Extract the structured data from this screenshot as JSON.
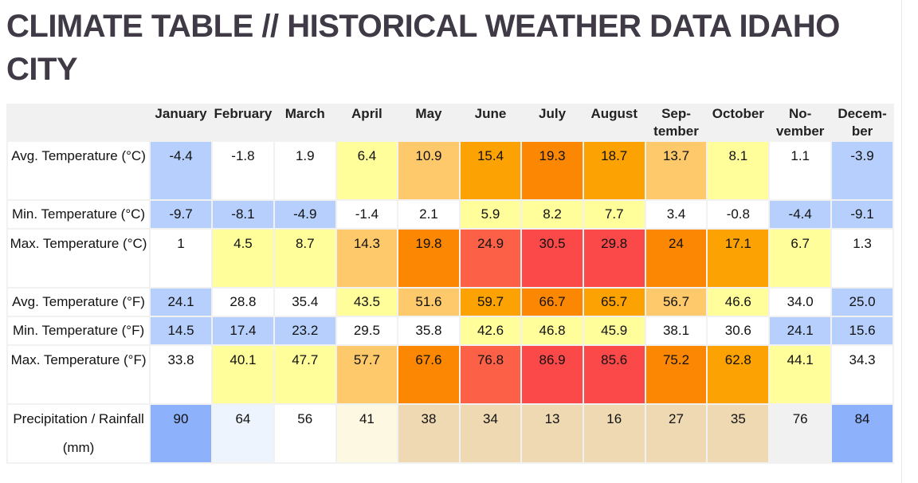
{
  "title": "CLIMATE TABLE // HISTORICAL WEATHER DATA IDAHO CITY",
  "months": [
    "January",
    "February",
    "March",
    "April",
    "May",
    "June",
    "July",
    "August",
    "Sep-\ntember",
    "October",
    "No-\nvember",
    "Decem-\nber"
  ],
  "rows": [
    {
      "label": "Avg. Temperature (°C)",
      "values": [
        "-4.4",
        "-1.8",
        "1.9",
        "6.4",
        "10.9",
        "15.4",
        "19.3",
        "18.7",
        "13.7",
        "8.1",
        "1.1",
        "-3.9"
      ],
      "colors": [
        "#b6cffc",
        "#ffffff",
        "#ffffff",
        "#fffe9a",
        "#fdc96b",
        "#fca202",
        "#fc8702",
        "#fca202",
        "#fdc96b",
        "#fffe9a",
        "#ffffff",
        "#b6cffc"
      ]
    },
    {
      "label": "Min. Temperature (°C)",
      "values": [
        "-9.7",
        "-8.1",
        "-4.9",
        "-1.4",
        "2.1",
        "5.9",
        "8.2",
        "7.7",
        "3.4",
        "-0.8",
        "-4.4",
        "-9.1"
      ],
      "colors": [
        "#b6cffc",
        "#b6cffc",
        "#b6cffc",
        "#ffffff",
        "#ffffff",
        "#fffe9a",
        "#fffe9a",
        "#fffe9a",
        "#ffffff",
        "#ffffff",
        "#b6cffc",
        "#b6cffc"
      ]
    },
    {
      "label": "Max. Temperature (°C)",
      "values": [
        "1",
        "4.5",
        "8.7",
        "14.3",
        "19.8",
        "24.9",
        "30.5",
        "29.8",
        "24",
        "17.1",
        "6.7",
        "1.3"
      ],
      "colors": [
        "#ffffff",
        "#fffe9a",
        "#fffe9a",
        "#fdc96b",
        "#fc8702",
        "#fc6148",
        "#fb4848",
        "#fb4848",
        "#fc8702",
        "#fca202",
        "#fffe9a",
        "#ffffff"
      ]
    },
    {
      "label": "Avg. Temperature (°F)",
      "values": [
        "24.1",
        "28.8",
        "35.4",
        "43.5",
        "51.6",
        "59.7",
        "66.7",
        "65.7",
        "56.7",
        "46.6",
        "34.0",
        "25.0"
      ],
      "colors": [
        "#b6cffc",
        "#ffffff",
        "#ffffff",
        "#fffe9a",
        "#fdc96b",
        "#fca202",
        "#fc8702",
        "#fca202",
        "#fdc96b",
        "#fffe9a",
        "#ffffff",
        "#b6cffc"
      ]
    },
    {
      "label": "Min. Temperature (°F)",
      "values": [
        "14.5",
        "17.4",
        "23.2",
        "29.5",
        "35.8",
        "42.6",
        "46.8",
        "45.9",
        "38.1",
        "30.6",
        "24.1",
        "15.6"
      ],
      "colors": [
        "#b6cffc",
        "#b6cffc",
        "#b6cffc",
        "#ffffff",
        "#ffffff",
        "#fffe9a",
        "#fffe9a",
        "#fffe9a",
        "#ffffff",
        "#ffffff",
        "#b6cffc",
        "#b6cffc"
      ]
    },
    {
      "label": "Max. Temperature (°F)",
      "values": [
        "33.8",
        "40.1",
        "47.7",
        "57.7",
        "67.6",
        "76.8",
        "86.9",
        "85.6",
        "75.2",
        "62.8",
        "44.1",
        "34.3"
      ],
      "colors": [
        "#ffffff",
        "#fffe9a",
        "#fffe9a",
        "#fdc96b",
        "#fc8702",
        "#fc6148",
        "#fb4848",
        "#fb4848",
        "#fc8702",
        "#fca202",
        "#fffe9a",
        "#ffffff"
      ]
    },
    {
      "label": "Precipitation / Rainfall (mm)",
      "values": [
        "90",
        "64",
        "56",
        "41",
        "38",
        "34",
        "13",
        "16",
        "27",
        "35",
        "76",
        "84"
      ],
      "colors": [
        "#8eb1fb",
        "#eef4fd",
        "#ffffff",
        "#fdf8e2",
        "#eed9b2",
        "#eed9b2",
        "#eed9b2",
        "#eed9b2",
        "#eed9b2",
        "#eed9b2",
        "#f1f1f1",
        "#8eb1fb"
      ]
    }
  ]
}
